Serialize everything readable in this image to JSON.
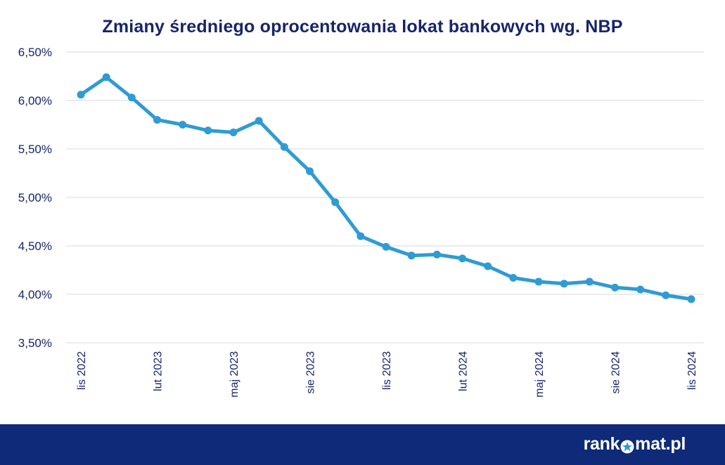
{
  "chart_data": {
    "type": "line",
    "title": "Zmiany średniego oprocentowania lokat bankowych wg. NBP",
    "xlabel": "",
    "ylabel": "",
    "ylim": [
      3.5,
      6.5
    ],
    "y_ticks": [
      "3,50%",
      "4,00%",
      "4,50%",
      "5,00%",
      "5,50%",
      "6,00%",
      "6,50%"
    ],
    "y_tick_values": [
      3.5,
      4.0,
      4.5,
      5.0,
      5.5,
      6.0,
      6.5
    ],
    "x_tick_labels": [
      "lis 2022",
      "lut 2023",
      "maj 2023",
      "sie 2023",
      "lis 2023",
      "lut 2024",
      "maj 2024",
      "sie 2024",
      "lis 2024"
    ],
    "x_tick_every": 3,
    "grid": true,
    "series": [
      {
        "values": [
          6.06,
          6.24,
          6.03,
          5.8,
          5.75,
          5.69,
          5.67,
          5.79,
          5.52,
          5.27,
          4.95,
          4.6,
          4.49,
          4.4,
          4.41,
          4.37,
          4.29,
          4.17,
          4.13,
          4.11,
          4.13,
          4.07,
          4.05,
          3.99,
          3.95
        ]
      }
    ],
    "colors": {
      "line": "#2f9bd3",
      "text": "#17246b",
      "grid": "#d9d9d9"
    }
  },
  "footer": {
    "brand_left": "rank",
    "brand_right": "mat.pl",
    "brand_icon": "star-icon",
    "background": "#0e2a78"
  }
}
